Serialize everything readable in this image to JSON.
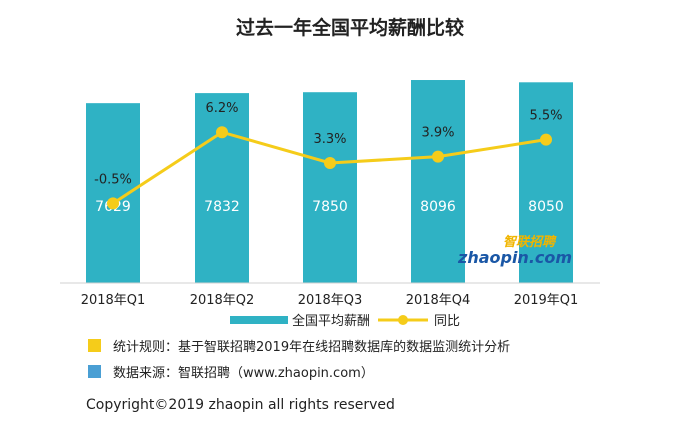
{
  "chart_data": {
    "type": "bar",
    "title": "过去一年全国平均薪酬比较",
    "categories": [
      "2018年Q1",
      "2018年Q2",
      "2018年Q3",
      "2018年Q4",
      "2019年Q1"
    ],
    "series": [
      {
        "name": "全国平均薪酬",
        "type": "bar",
        "values": [
          7629,
          7832,
          7850,
          8096,
          8050
        ],
        "labels": [
          "7629",
          "7832",
          "7850",
          "8096",
          "8050"
        ]
      },
      {
        "name": "同比",
        "type": "line",
        "values": [
          -0.5,
          6.2,
          3.3,
          3.9,
          5.5
        ],
        "labels": [
          "-0.5%",
          "6.2%",
          "3.3%",
          "3.9%",
          "5.5%"
        ]
      }
    ],
    "ylim": [
      4000,
      8500
    ],
    "y2lim": [
      -8,
      13
    ],
    "grid": false,
    "legend": "bottom",
    "colors": {
      "bar": "#2fb2c4",
      "line": "#f5cc1a"
    }
  },
  "watermark": {
    "top": "智联招聘",
    "bottom": "zhaopin.com"
  },
  "notes": [
    {
      "text": "统计规则：基于智联招聘2019年在线招聘数据库的数据监测统计分析",
      "marker_color": "#f5cc1a"
    },
    {
      "text": "数据来源：智联招聘（www.zhaopin.com）",
      "marker_color": "#4a9fd4"
    }
  ],
  "footer": {
    "copyright": "Copyright©2019 zhaopin all rights reserved"
  }
}
